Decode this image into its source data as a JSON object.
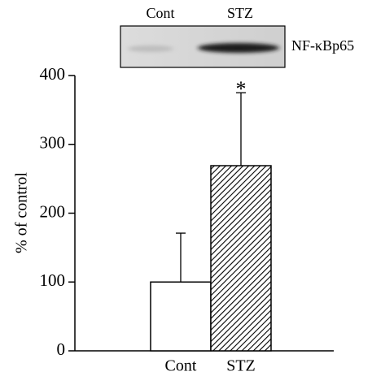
{
  "chart_data": {
    "type": "bar",
    "y_label": "% of control",
    "categories": [
      "Cont",
      "STZ"
    ],
    "values": [
      100,
      269
    ],
    "error": [
      71,
      106
    ],
    "fills": [
      "white",
      "hatch"
    ],
    "annotation": {
      "text": "*",
      "category": 1
    },
    "ylim": [
      0,
      400
    ],
    "yticks": [
      0,
      100,
      200,
      300,
      400
    ],
    "blot": {
      "lanes": [
        "Cont",
        "STZ"
      ],
      "label": "NF-κBp65"
    }
  }
}
